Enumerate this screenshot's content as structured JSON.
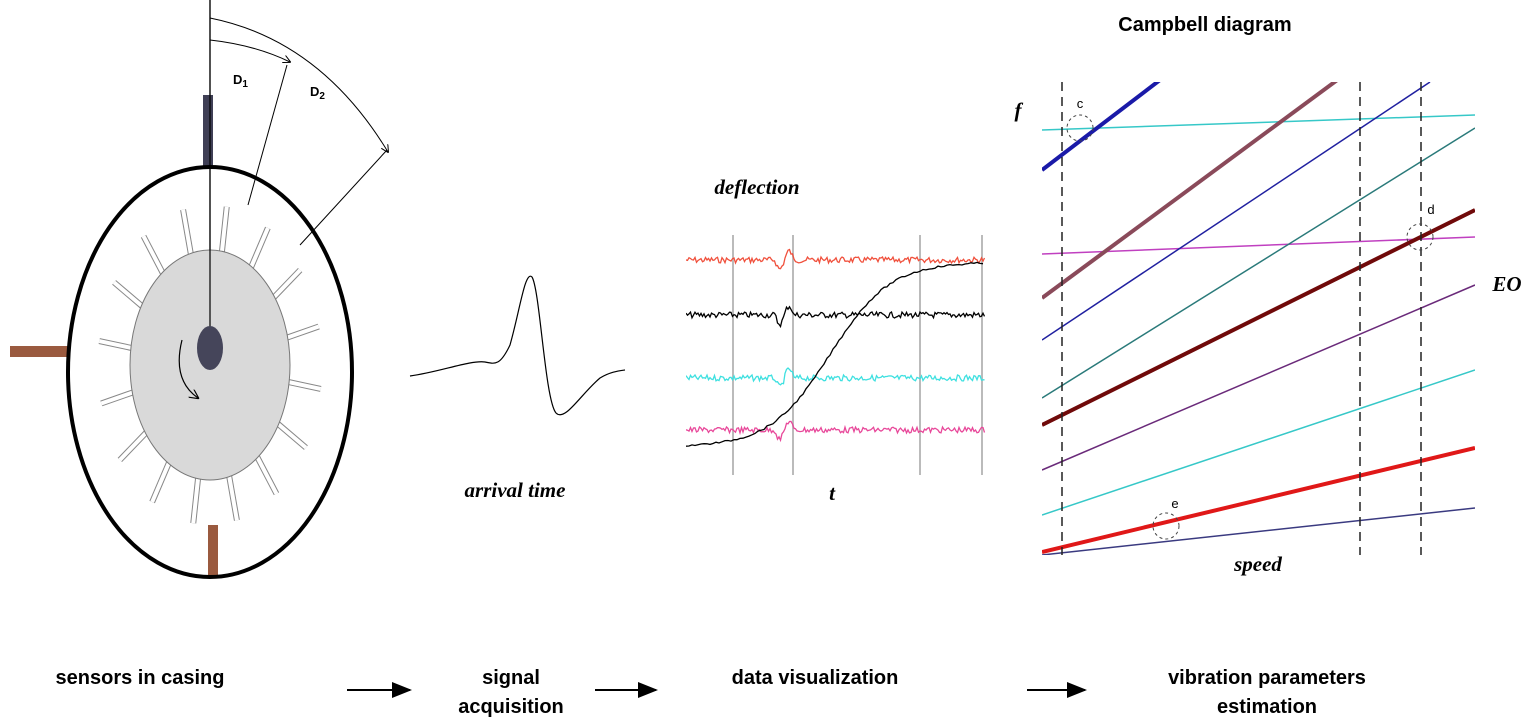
{
  "sensor_diagram": {
    "angle_labels": [
      {
        "main": "D",
        "sub": "1"
      },
      {
        "main": "D",
        "sub": "2"
      }
    ]
  },
  "signal": {
    "label": "arrival time"
  },
  "visualization": {
    "y_label": "deflection",
    "x_label": "t"
  },
  "campbell": {
    "title": "Campbell diagram",
    "y_label": "f",
    "x_label": "speed",
    "line_label": "EO",
    "points": [
      "c",
      "d",
      "e"
    ]
  },
  "pipeline": {
    "steps": [
      [
        "sensors in casing"
      ],
      [
        "signal",
        "acquisition"
      ],
      [
        "data visualization"
      ],
      [
        "vibration parameters",
        "estimation"
      ]
    ]
  }
}
